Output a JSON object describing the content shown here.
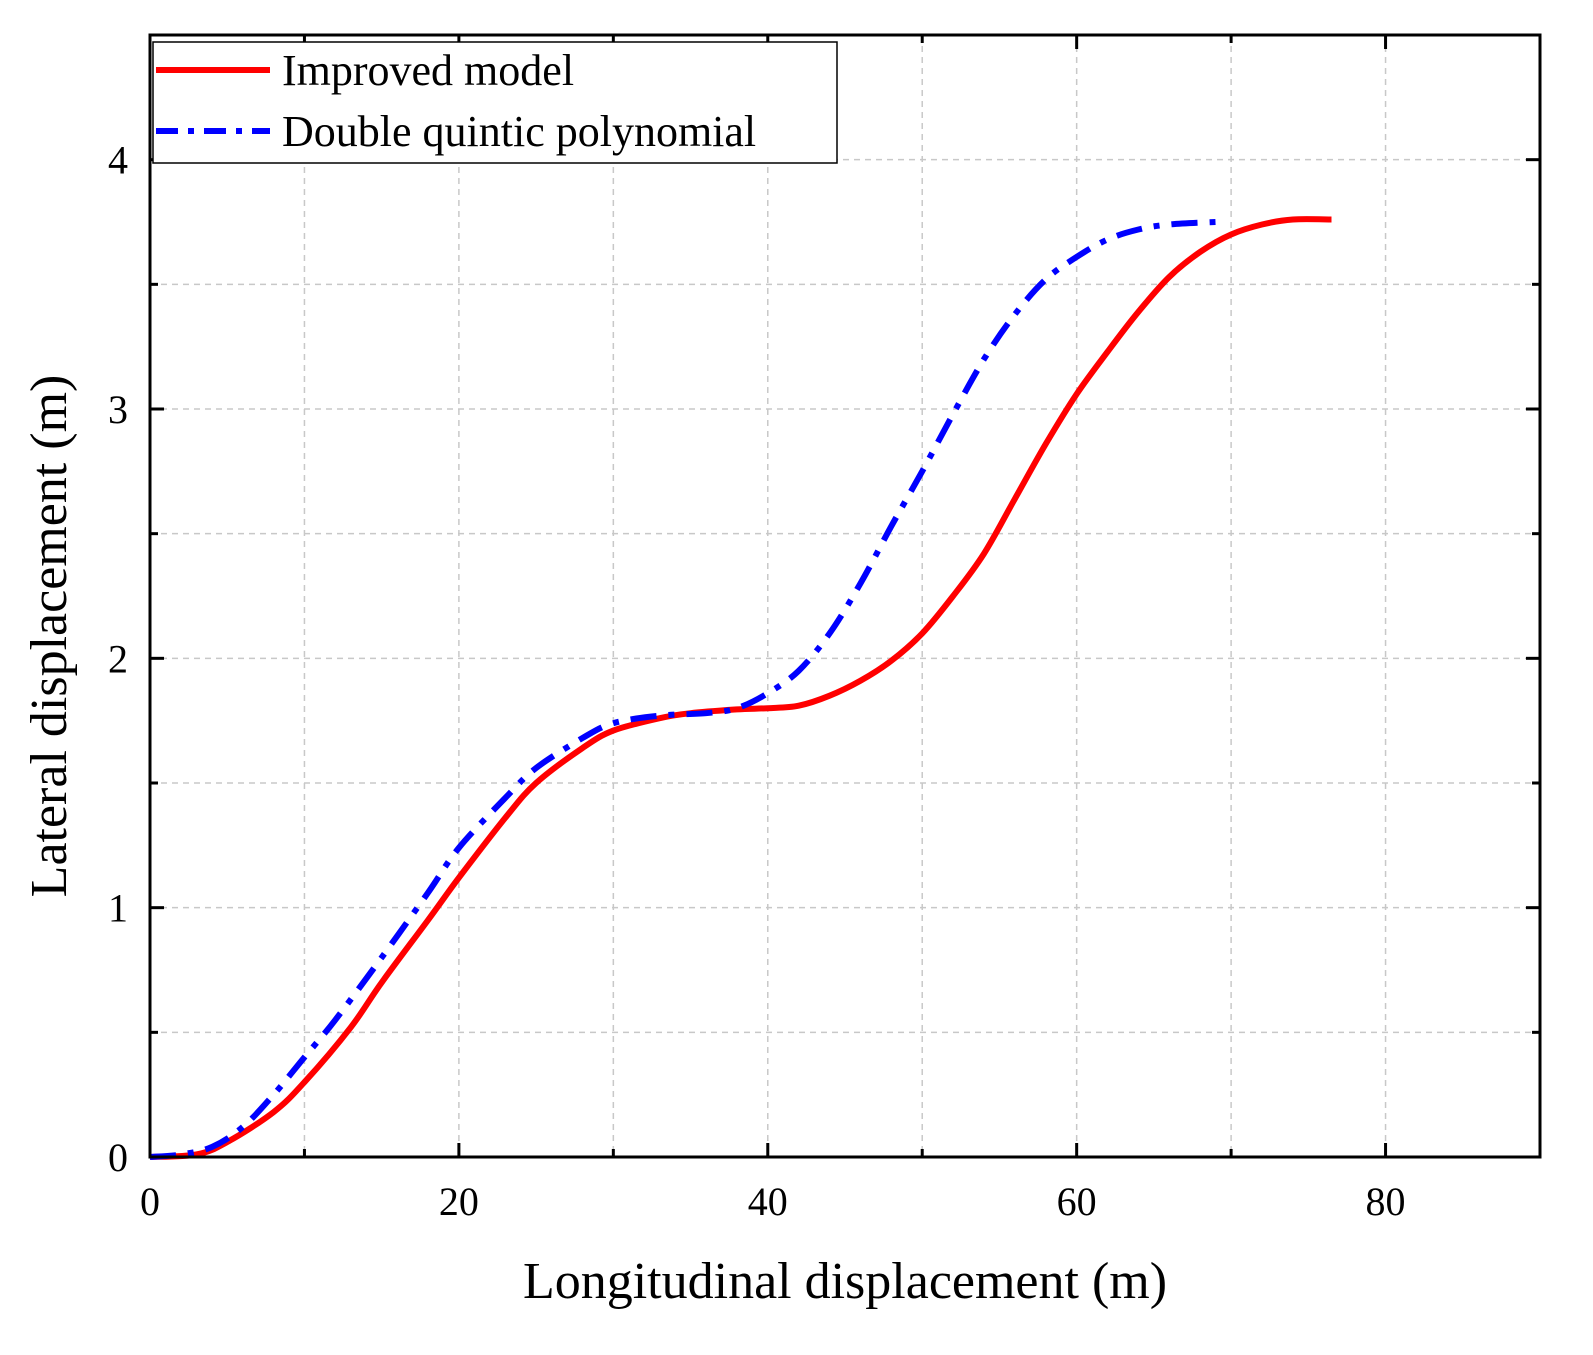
{
  "chart_data": {
    "type": "line",
    "title": "",
    "xlabel": "Longitudinal displacement (m)",
    "ylabel": "Lateral displacement (m)",
    "xlim": [
      0,
      90
    ],
    "ylim": [
      0,
      4.5
    ],
    "xticks": [
      0,
      20,
      40,
      60,
      80
    ],
    "yticks": [
      0,
      1,
      2,
      3,
      4
    ],
    "grid": true,
    "legend": "top-left",
    "series": [
      {
        "name": "Improved model",
        "color": "#ff0000",
        "style": "solid",
        "points": [
          [
            0,
            0
          ],
          [
            3,
            0.01
          ],
          [
            5,
            0.06
          ],
          [
            8,
            0.18
          ],
          [
            10,
            0.3
          ],
          [
            13,
            0.52
          ],
          [
            15,
            0.7
          ],
          [
            18,
            0.95
          ],
          [
            20,
            1.12
          ],
          [
            23,
            1.36
          ],
          [
            25,
            1.5
          ],
          [
            28,
            1.64
          ],
          [
            30,
            1.71
          ],
          [
            33,
            1.76
          ],
          [
            35,
            1.78
          ],
          [
            38,
            1.795
          ],
          [
            40,
            1.8
          ],
          [
            42,
            1.81
          ],
          [
            44,
            1.85
          ],
          [
            46,
            1.91
          ],
          [
            48,
            1.99
          ],
          [
            50,
            2.1
          ],
          [
            52,
            2.25
          ],
          [
            54,
            2.42
          ],
          [
            56,
            2.64
          ],
          [
            58,
            2.86
          ],
          [
            60,
            3.06
          ],
          [
            62,
            3.23
          ],
          [
            64,
            3.39
          ],
          [
            66,
            3.53
          ],
          [
            68,
            3.63
          ],
          [
            70,
            3.7
          ],
          [
            72,
            3.74
          ],
          [
            74,
            3.76
          ],
          [
            76.5,
            3.76
          ]
        ]
      },
      {
        "name": "Double quintic polynomial",
        "color": "#0000ff",
        "style": "dashdot",
        "points": [
          [
            0,
            0
          ],
          [
            2,
            0.01
          ],
          [
            4,
            0.04
          ],
          [
            6,
            0.12
          ],
          [
            8,
            0.25
          ],
          [
            10,
            0.4
          ],
          [
            12,
            0.55
          ],
          [
            15,
            0.8
          ],
          [
            18,
            1.06
          ],
          [
            20,
            1.24
          ],
          [
            23,
            1.44
          ],
          [
            25,
            1.56
          ],
          [
            28,
            1.68
          ],
          [
            30,
            1.74
          ],
          [
            33,
            1.77
          ],
          [
            36,
            1.78
          ],
          [
            38,
            1.8
          ],
          [
            40,
            1.86
          ],
          [
            42,
            1.95
          ],
          [
            44,
            2.1
          ],
          [
            46,
            2.3
          ],
          [
            48,
            2.53
          ],
          [
            50,
            2.75
          ],
          [
            52,
            2.98
          ],
          [
            54,
            3.2
          ],
          [
            56,
            3.38
          ],
          [
            58,
            3.52
          ],
          [
            60,
            3.61
          ],
          [
            62,
            3.68
          ],
          [
            64,
            3.72
          ],
          [
            66,
            3.74
          ],
          [
            69,
            3.75
          ]
        ]
      }
    ]
  }
}
